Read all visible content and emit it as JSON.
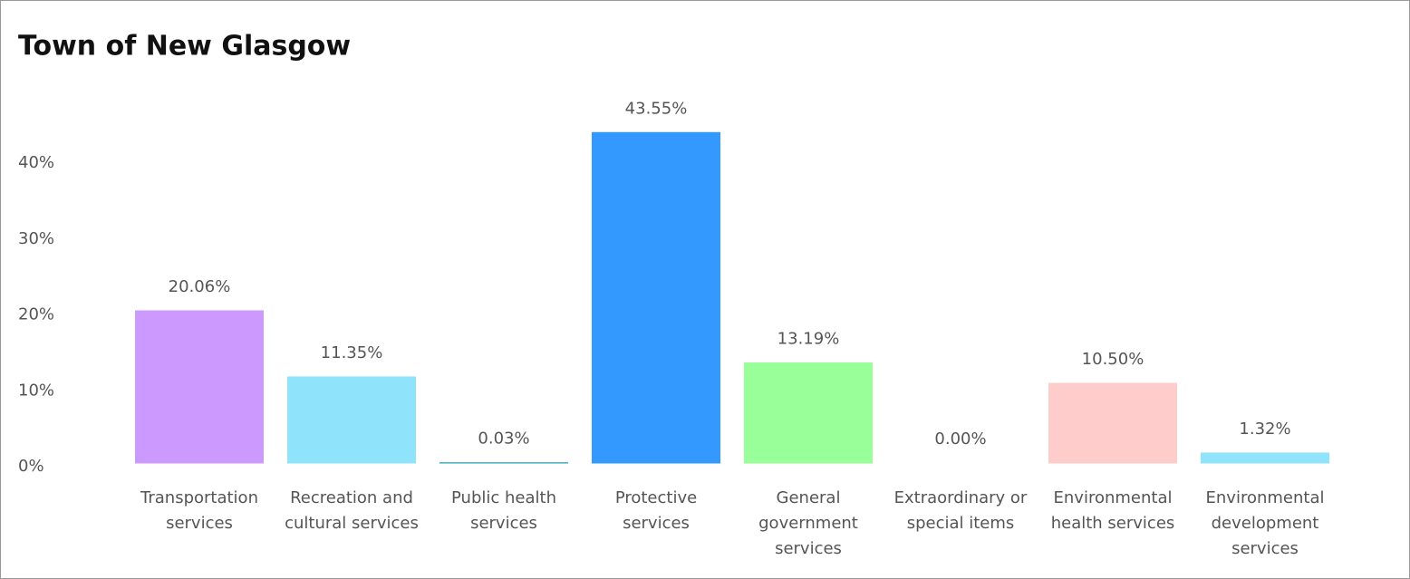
{
  "chart_data": {
    "type": "bar",
    "title": "Town of New Glasgow",
    "categories": [
      "Transportation services",
      "Recreation and cultural services",
      "Public health services",
      "Protective services",
      "General government services",
      "Extraordinary or special items",
      "Environmental health services",
      "Environmental development services"
    ],
    "values": [
      20.06,
      11.35,
      0.03,
      43.55,
      13.19,
      0.0,
      10.5,
      1.32
    ],
    "value_labels": [
      "20.06%",
      "11.35%",
      "0.03%",
      "43.55%",
      "13.19%",
      "0.00%",
      "10.50%",
      "1.32%"
    ],
    "colors": [
      "#cc99ff",
      "#8fe3fa",
      "#1aa3b5",
      "#3399ff",
      "#99ff99",
      "#a0a0a0",
      "#ffcccc",
      "#8fe3fa"
    ],
    "ylim": [
      0,
      45
    ],
    "yticks": [
      {
        "value": 0,
        "label": "0%"
      },
      {
        "value": 10,
        "label": "10%"
      },
      {
        "value": 20,
        "label": "20%"
      },
      {
        "value": 30,
        "label": "30%"
      },
      {
        "value": 40,
        "label": "40%"
      }
    ],
    "grid": false
  }
}
